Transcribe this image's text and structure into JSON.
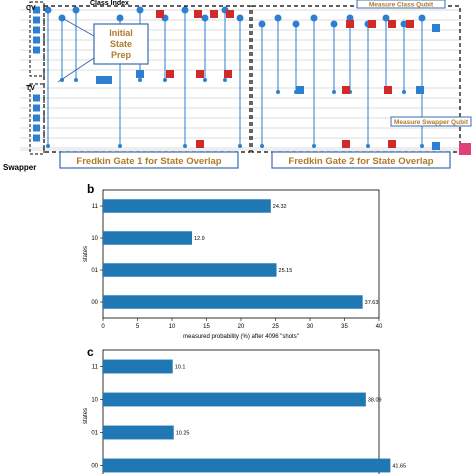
{
  "circuit": {
    "register_labels": [
      "CV",
      "TV",
      "Swapper"
    ],
    "class_index_label": "Class Index",
    "initial_state_prep": [
      "Initial",
      "State",
      "Prep"
    ],
    "measure_class_label": "Measure Class Qubit",
    "measure_swapper_label": "Measure Swapper Qubit",
    "fredkin1_label": "Fredkin Gate 1 for State Overlap",
    "fredkin2_label": "Fredkin Gate 2 for State Overlap",
    "colors": {
      "h_gate": "#2e7fd0",
      "t_gate": "#d02a2a",
      "frame": "#3a6bb0",
      "label_text": "#b07a2a"
    }
  },
  "panels": {
    "b": "b",
    "c": "c"
  },
  "chart_data": [
    {
      "type": "bar",
      "orientation": "horizontal",
      "categories": [
        "11",
        "10",
        "01",
        "00"
      ],
      "values": [
        24.32,
        12.9,
        25.15,
        37.63
      ],
      "value_labels": [
        "24.32",
        "12.9",
        "25.15",
        "37.63"
      ],
      "xlabel": "measured probability (%) after 4096 \"shots\"",
      "ylabel": "states",
      "xlim": [
        0,
        40
      ],
      "xticks": [
        "0",
        "5",
        "10",
        "15",
        "20",
        "25",
        "30",
        "35",
        "40"
      ],
      "color": "#1f77b4"
    },
    {
      "type": "bar",
      "orientation": "horizontal",
      "categories": [
        "11",
        "10",
        "01",
        "00"
      ],
      "values": [
        10.1,
        38.09,
        10.25,
        41.65
      ],
      "value_labels": [
        "10.1",
        "38.09",
        "10.25",
        "41.65"
      ],
      "xlabel": "",
      "ylabel": "states",
      "xlim": [
        0,
        40
      ],
      "xticks": [],
      "color": "#1f77b4"
    }
  ]
}
